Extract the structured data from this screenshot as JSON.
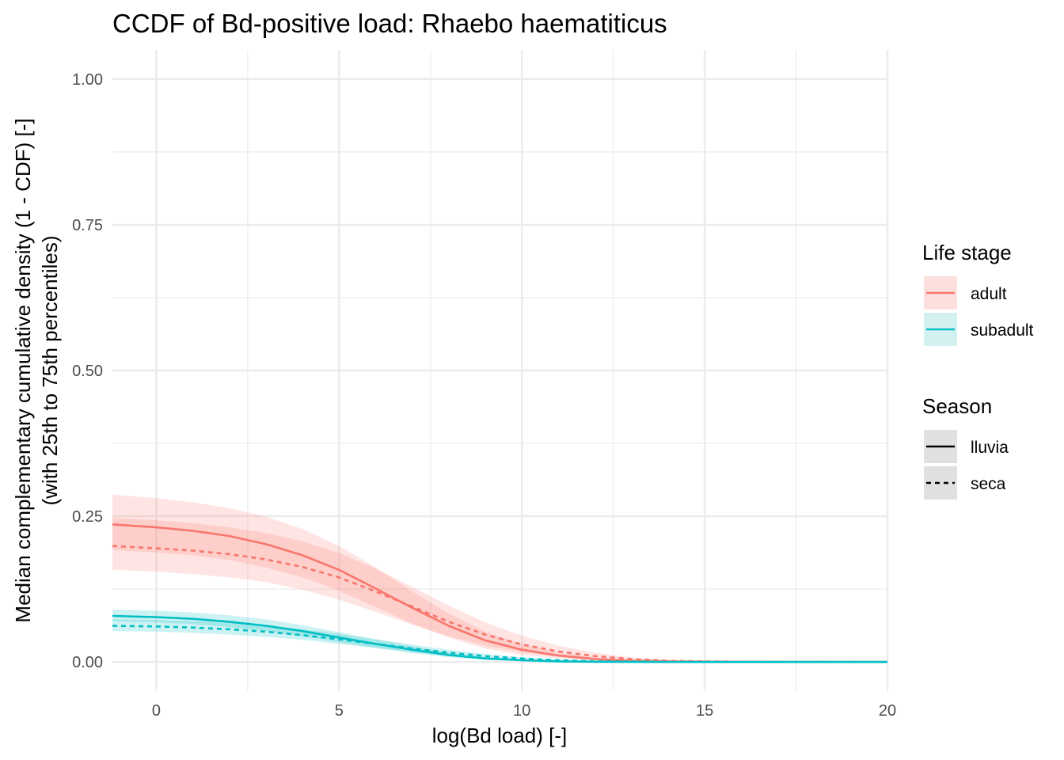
{
  "chart_data": {
    "type": "line",
    "title": "CCDF of Bd-positive load: Rhaebo haematiticus",
    "xlabel": "log(Bd load) [-]",
    "ylabel_line1": "Median complementary cumulative density (1 - CDF) [-]",
    "ylabel_line2": "(with 25th to 75th percentiles)",
    "xlim": [
      -1.2,
      20
    ],
    "ylim": [
      -0.05,
      1.05
    ],
    "x_ticks": [
      0,
      5,
      10,
      15,
      20
    ],
    "x_tick_labels": [
      "0",
      "5",
      "10",
      "15",
      "20"
    ],
    "y_ticks": [
      0,
      0.25,
      0.5,
      0.75,
      1.0
    ],
    "y_tick_labels": [
      "0.00",
      "0.25",
      "0.50",
      "0.75",
      "1.00"
    ],
    "grid": true,
    "x": [
      -1.2,
      0,
      1,
      2,
      3,
      4,
      5,
      6,
      7,
      8,
      9,
      10,
      11,
      12,
      13,
      14,
      15,
      16,
      17,
      18,
      19,
      20
    ],
    "series": [
      {
        "name": "adult / lluvia",
        "life_stage": "adult",
        "season": "lluvia",
        "color": "#F8766D",
        "linetype": "solid",
        "values": [
          0.236,
          0.231,
          0.225,
          0.216,
          0.202,
          0.183,
          0.158,
          0.126,
          0.093,
          0.062,
          0.037,
          0.021,
          0.011,
          0.005,
          0.002,
          0.001,
          0.0004,
          0.0001,
          0,
          0,
          0,
          0
        ],
        "lower": [
          0.192,
          0.188,
          0.183,
          0.175,
          0.162,
          0.145,
          0.122,
          0.094,
          0.066,
          0.042,
          0.023,
          0.012,
          0.006,
          0.002,
          0.001,
          0.0003,
          0.0001,
          0,
          0,
          0,
          0,
          0
        ],
        "upper": [
          0.287,
          0.281,
          0.274,
          0.264,
          0.249,
          0.228,
          0.199,
          0.162,
          0.121,
          0.083,
          0.052,
          0.03,
          0.016,
          0.008,
          0.003,
          0.001,
          0.0005,
          0.0002,
          0,
          0,
          0,
          0
        ]
      },
      {
        "name": "adult / seca",
        "life_stage": "adult",
        "season": "seca",
        "color": "#F8766D",
        "linetype": "dashed",
        "values": [
          0.199,
          0.195,
          0.191,
          0.185,
          0.176,
          0.163,
          0.145,
          0.121,
          0.095,
          0.069,
          0.047,
          0.03,
          0.018,
          0.01,
          0.005,
          0.002,
          0.001,
          0.0004,
          0.0001,
          0,
          0,
          0
        ],
        "lower": [
          0.158,
          0.155,
          0.151,
          0.145,
          0.137,
          0.124,
          0.107,
          0.086,
          0.064,
          0.044,
          0.028,
          0.017,
          0.009,
          0.004,
          0.002,
          0.001,
          0.0003,
          0.0001,
          0,
          0,
          0,
          0
        ],
        "upper": [
          0.247,
          0.243,
          0.238,
          0.231,
          0.221,
          0.207,
          0.187,
          0.16,
          0.129,
          0.097,
          0.068,
          0.045,
          0.028,
          0.016,
          0.008,
          0.004,
          0.002,
          0.001,
          0.0003,
          0.0001,
          0,
          0
        ]
      },
      {
        "name": "subadult / lluvia",
        "life_stage": "subadult",
        "season": "lluvia",
        "color": "#00BFC4",
        "linetype": "solid",
        "values": [
          0.079,
          0.077,
          0.074,
          0.069,
          0.062,
          0.053,
          0.042,
          0.031,
          0.021,
          0.012,
          0.006,
          0.003,
          0.001,
          0.0004,
          0.0001,
          0,
          0,
          0,
          0,
          0,
          0,
          0
        ],
        "lower": [
          0.07,
          0.068,
          0.065,
          0.06,
          0.053,
          0.044,
          0.034,
          0.024,
          0.015,
          0.008,
          0.004,
          0.002,
          0.001,
          0.0002,
          0,
          0,
          0,
          0,
          0,
          0,
          0,
          0
        ],
        "upper": [
          0.09,
          0.088,
          0.085,
          0.08,
          0.073,
          0.063,
          0.051,
          0.039,
          0.027,
          0.016,
          0.009,
          0.004,
          0.002,
          0.001,
          0.0002,
          0,
          0,
          0,
          0,
          0,
          0,
          0
        ]
      },
      {
        "name": "subadult / seca",
        "life_stage": "subadult",
        "season": "seca",
        "color": "#00BFC4",
        "linetype": "dashed",
        "values": [
          0.062,
          0.061,
          0.059,
          0.056,
          0.052,
          0.046,
          0.039,
          0.031,
          0.023,
          0.016,
          0.01,
          0.006,
          0.003,
          0.001,
          0.0005,
          0.0002,
          0,
          0,
          0,
          0,
          0,
          0
        ],
        "lower": [
          0.053,
          0.052,
          0.05,
          0.047,
          0.043,
          0.038,
          0.031,
          0.024,
          0.017,
          0.011,
          0.006,
          0.003,
          0.002,
          0.001,
          0.0002,
          0,
          0,
          0,
          0,
          0,
          0,
          0
        ],
        "upper": [
          0.073,
          0.072,
          0.07,
          0.067,
          0.062,
          0.056,
          0.048,
          0.039,
          0.03,
          0.021,
          0.014,
          0.008,
          0.004,
          0.002,
          0.001,
          0.0003,
          0,
          0,
          0,
          0,
          0,
          0
        ]
      }
    ],
    "legend": {
      "placement": "right",
      "life_stage": {
        "title": "Life stage",
        "items": [
          {
            "label": "adult",
            "color": "#F8766D",
            "fill": "#FDE0DE"
          },
          {
            "label": "subadult",
            "color": "#00BFC4",
            "fill": "#D4F1F2"
          }
        ]
      },
      "season": {
        "title": "Season",
        "items": [
          {
            "label": "lluvia",
            "linetype": "solid"
          },
          {
            "label": "seca",
            "linetype": "dashed"
          }
        ]
      }
    }
  }
}
